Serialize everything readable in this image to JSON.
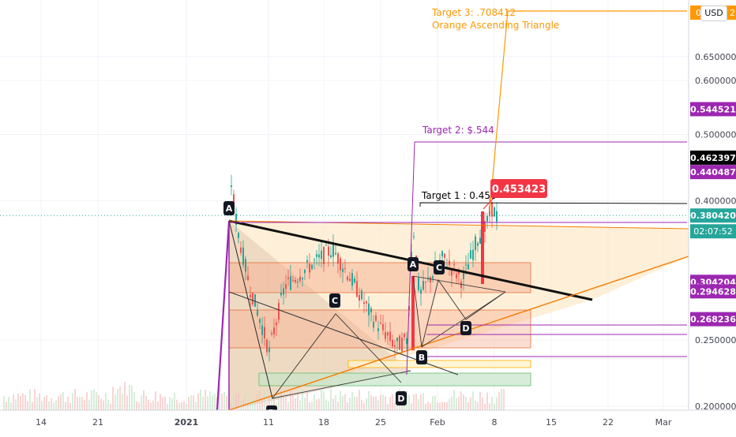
{
  "chart_data": {
    "type": "candlestick",
    "y_scale": "log",
    "ylim": [
      0.198,
      0.76
    ],
    "x_tick_labels": [
      "14",
      "21",
      "2021",
      "11",
      "18",
      "25",
      "Feb",
      "8",
      "15",
      "22",
      "Mar"
    ],
    "y_tick_labels": [
      "0.650000",
      "0.600000",
      "0.500000",
      "0.400000",
      "0.250000",
      "0.200000"
    ],
    "y_ticks": [
      0.65,
      0.6,
      0.5,
      0.4,
      0.25,
      0.2
    ],
    "price_labels": [
      {
        "text": "0.544521",
        "value": 0.544521,
        "color": "#9c27b0"
      },
      {
        "text": "0.462397",
        "value": 0.462397,
        "color": "#000000"
      },
      {
        "text": "0.440487",
        "value": 0.440487,
        "color": "#9c27b0"
      },
      {
        "text": "0.380420",
        "value": 0.38042,
        "color": "#26a69a"
      },
      {
        "text": "0.304204",
        "value": 0.304204,
        "color": "#9c27b0"
      },
      {
        "text": "0.294628",
        "value": 0.294628,
        "color": "#9c27b0"
      },
      {
        "text": "0.268236",
        "value": 0.268236,
        "color": "#9c27b0"
      }
    ],
    "top_label": {
      "text": "0",
      "suffix": "2",
      "color": "#ff9800"
    },
    "countdown": {
      "text": "02:07:52",
      "color": "#26a69a"
    },
    "currency": "USD",
    "annotations": [
      {
        "text": "Target 3: .708412",
        "color": "#ff9800"
      },
      {
        "text": "Orange Ascending Triangle",
        "color": "#ff9800"
      },
      {
        "text": "Target 2: $.544",
        "color": "#9c27b0"
      },
      {
        "text": "Target 1 : 0.456",
        "color": "#000000"
      },
      {
        "text": "0.453423",
        "color": "#f23645"
      }
    ],
    "pattern_points": [
      "A",
      "C",
      "B",
      "D",
      "A",
      "C",
      "B",
      "D"
    ]
  }
}
